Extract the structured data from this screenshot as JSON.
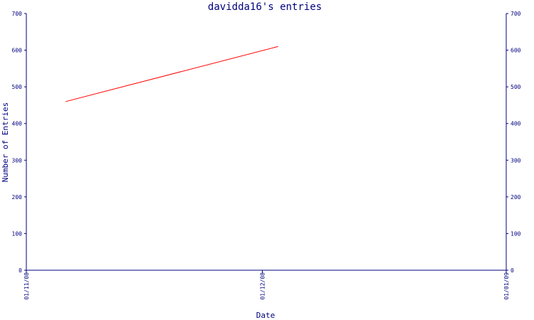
{
  "chart_data": {
    "type": "line",
    "title": "davidda16's entries",
    "xlabel": "Date",
    "ylabel": "Number of Entries",
    "x_ticks": [
      "01/11/08",
      "01/12/08",
      "01/01/09"
    ],
    "xlim": [
      "01/11/08",
      "01/01/09"
    ],
    "ylim": [
      0,
      700
    ],
    "y_ticks": [
      0,
      100,
      200,
      300,
      400,
      500,
      600,
      700
    ],
    "y_ticks_right": true,
    "grid": false,
    "series": [
      {
        "x": [
          "2008-11-06",
          "2008-12-03"
        ],
        "values": [
          460,
          610
        ]
      }
    ],
    "colors": {
      "axis": "#00007f",
      "line": "#ff0000",
      "background": "#ffffff"
    }
  }
}
